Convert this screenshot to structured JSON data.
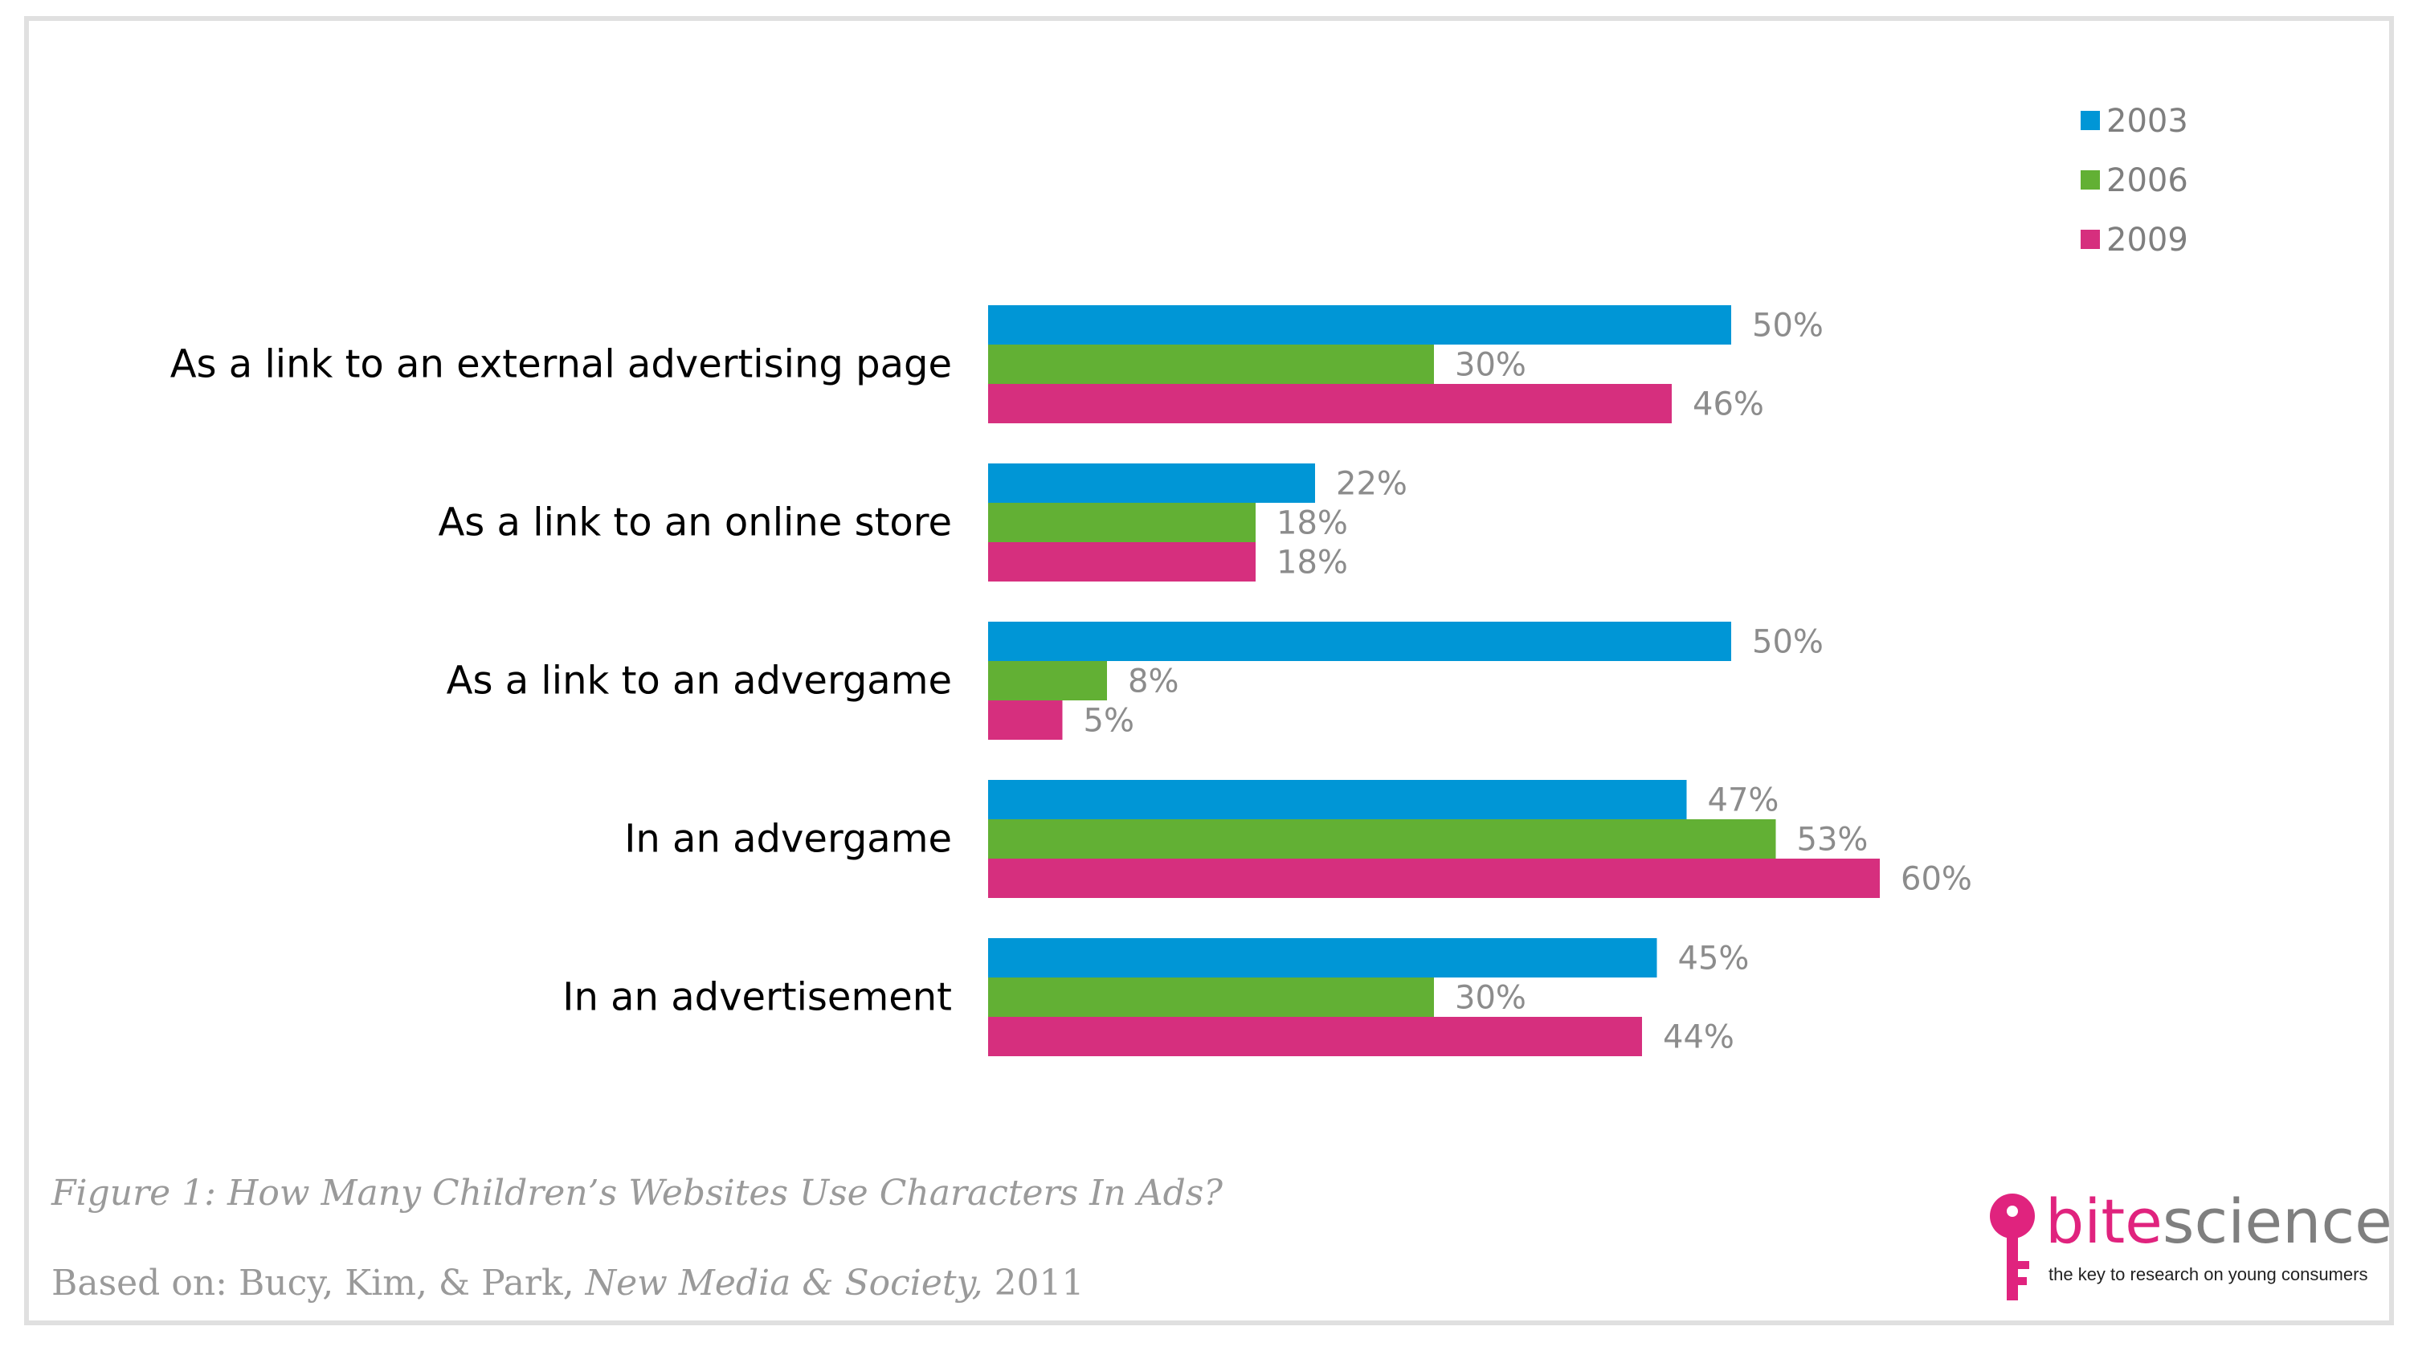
{
  "chart_data": {
    "type": "bar",
    "orientation": "horizontal",
    "categories": [
      "As a link to an external advertising page",
      "As a link to an online store",
      "As a link to an advergame",
      "In an advergame",
      "In an advertisement"
    ],
    "series": [
      {
        "name": "2003",
        "color": "#0096d6",
        "values": [
          50,
          22,
          50,
          47,
          45
        ],
        "labels": [
          "50%",
          "22%",
          "50%",
          "47%",
          "45%"
        ]
      },
      {
        "name": "2006",
        "color": "#62b034",
        "values": [
          30,
          18,
          8,
          53,
          30
        ],
        "labels": [
          "30%",
          "18%",
          "8%",
          "53%",
          "30%"
        ]
      },
      {
        "name": "2009",
        "color": "#d62f7e",
        "values": [
          46,
          18,
          5,
          60,
          44
        ],
        "labels": [
          "46%",
          "18%",
          "5%",
          "60%",
          "44%"
        ]
      }
    ],
    "unit": "%",
    "xlim": [
      0,
      60
    ],
    "grid": false,
    "legend_position": "top-right"
  },
  "caption": "Figure 1: How Many Children’s Websites Use Characters In Ads?",
  "source": {
    "prefix": "Based on: Bucy, Kim, & Park, ",
    "publication": "New Media & Society,",
    "year": " 2011"
  },
  "logo": {
    "brand_part1": "bite",
    "brand_part2": "science",
    "tagline": "the key to research on young consumers",
    "icon": "key-icon",
    "color_primary": "#e0237e",
    "color_secondary": "#7f7f7f"
  }
}
